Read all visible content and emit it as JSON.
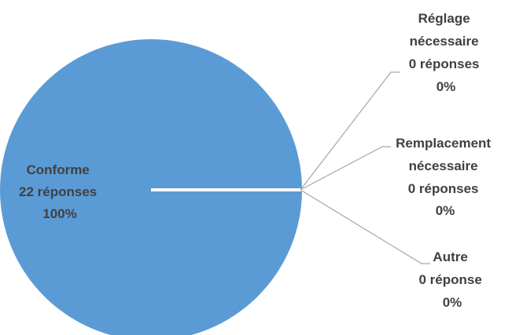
{
  "chart_data": {
    "type": "pie",
    "title": "",
    "slices": [
      {
        "name": "Conforme",
        "count_text": "22 réponses",
        "percent_text": "100%",
        "value": 22,
        "color": "#5b9bd5"
      },
      {
        "name": "Réglage nécessaire",
        "name_lines": [
          "Réglage",
          "nécessaire"
        ],
        "count_text": "0 réponses",
        "percent_text": "0%",
        "value": 0,
        "color": "#ed7d31"
      },
      {
        "name": "Remplacement nécessaire",
        "name_lines": [
          "Remplacement",
          "nécessaire"
        ],
        "count_text": "0 réponses",
        "percent_text": "0%",
        "value": 0,
        "color": "#a5a5a5"
      },
      {
        "name": "Autre",
        "name_lines": [
          "Autre"
        ],
        "count_text": "0 réponse",
        "percent_text": "0%",
        "value": 0,
        "color": "#ffc000"
      }
    ],
    "legend": false
  }
}
